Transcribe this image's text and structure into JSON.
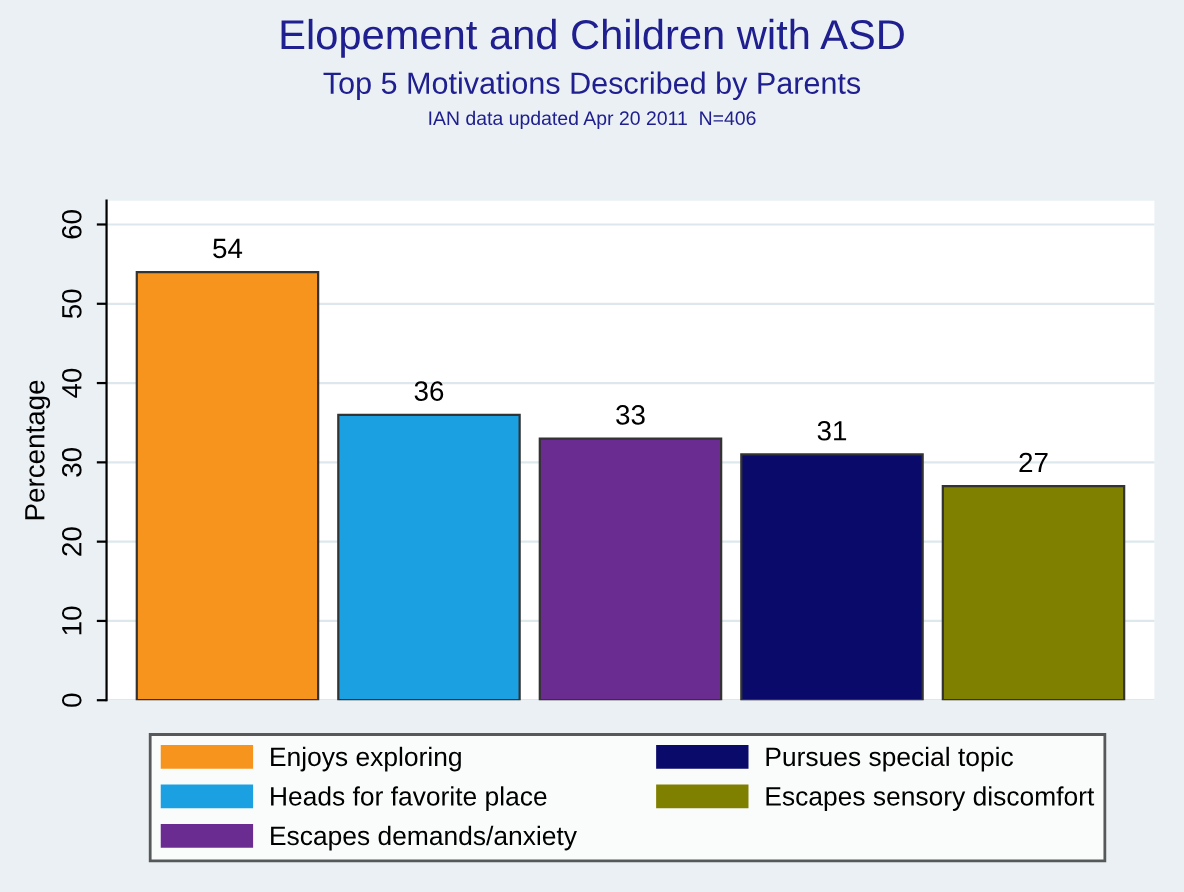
{
  "chart_data": {
    "type": "bar",
    "title": "Elopement and Children with ASD",
    "subtitle": "Top 5 Motivations Described by Parents",
    "annotations": [
      "IAN data updated Apr 20 2011  N=406"
    ],
    "ylabel": "Percentage",
    "categories": [
      null,
      null,
      null,
      null,
      null
    ],
    "series": [
      {
        "name": "Enjoys exploring",
        "color": "#f7941d",
        "values": [
          54,
          null,
          null,
          null,
          null
        ]
      },
      {
        "name": "Heads for favorite place",
        "color": "#1ba1e2",
        "values": [
          null,
          36,
          null,
          null,
          null
        ]
      },
      {
        "name": "Escapes demands/anxiety",
        "color": "#6b2c91",
        "values": [
          null,
          null,
          33,
          null,
          null
        ]
      },
      {
        "name": "Pursues special topic",
        "color": "#0a0a6b",
        "values": [
          null,
          null,
          null,
          31,
          null
        ]
      },
      {
        "name": "Escapes sensory discomfort",
        "color": "#808000",
        "values": [
          null,
          null,
          null,
          null,
          27
        ]
      }
    ],
    "data_labels": true,
    "ylim": [
      0,
      63
    ],
    "yticks": [
      0,
      10,
      20,
      30,
      40,
      50,
      60
    ],
    "grid": "y",
    "legend": "bottom",
    "tick_labels": "y"
  }
}
